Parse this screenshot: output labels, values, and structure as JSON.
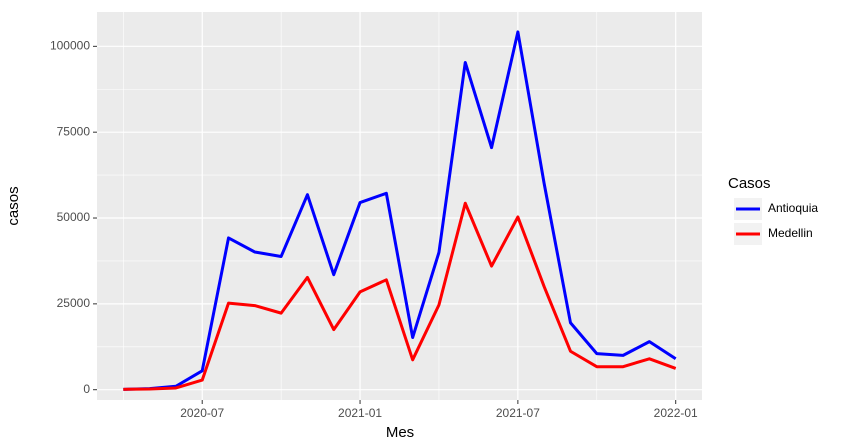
{
  "chart_data": {
    "type": "line",
    "x_label": "Mes",
    "y_label": "casos",
    "legend_title": "Casos",
    "legend_position": "right",
    "grid": true,
    "x": [
      "2020-04",
      "2020-05",
      "2020-06",
      "2020-07",
      "2020-08",
      "2020-09",
      "2020-10",
      "2020-11",
      "2020-12",
      "2021-01",
      "2021-02",
      "2021-03",
      "2021-04",
      "2021-05",
      "2021-06",
      "2021-07",
      "2021-08",
      "2021-09",
      "2021-10",
      "2021-11",
      "2021-12",
      "2022-01"
    ],
    "xlim": [
      "2020-03",
      "2022-02"
    ],
    "xticks": [
      "2020-07",
      "2021-01",
      "2021-07",
      "2022-01"
    ],
    "ylim": [
      -3000,
      110000
    ],
    "yticks": [
      0,
      25000,
      50000,
      75000,
      100000
    ],
    "series": [
      {
        "name": "Antioquia",
        "color": "#0000ff",
        "values": [
          100,
          300,
          1000,
          5500,
          44200,
          40100,
          38800,
          56800,
          33500,
          54500,
          57200,
          15200,
          40000,
          95300,
          70500,
          104200,
          60000,
          19500,
          10500,
          10000,
          14000,
          9000
        ]
      },
      {
        "name": "Medellin",
        "color": "#ff0000",
        "values": [
          100,
          200,
          500,
          2800,
          25200,
          24500,
          22300,
          32700,
          17500,
          28500,
          32000,
          8700,
          24700,
          54300,
          36000,
          50300,
          30000,
          11200,
          6700,
          6700,
          9000,
          6200
        ]
      }
    ]
  }
}
